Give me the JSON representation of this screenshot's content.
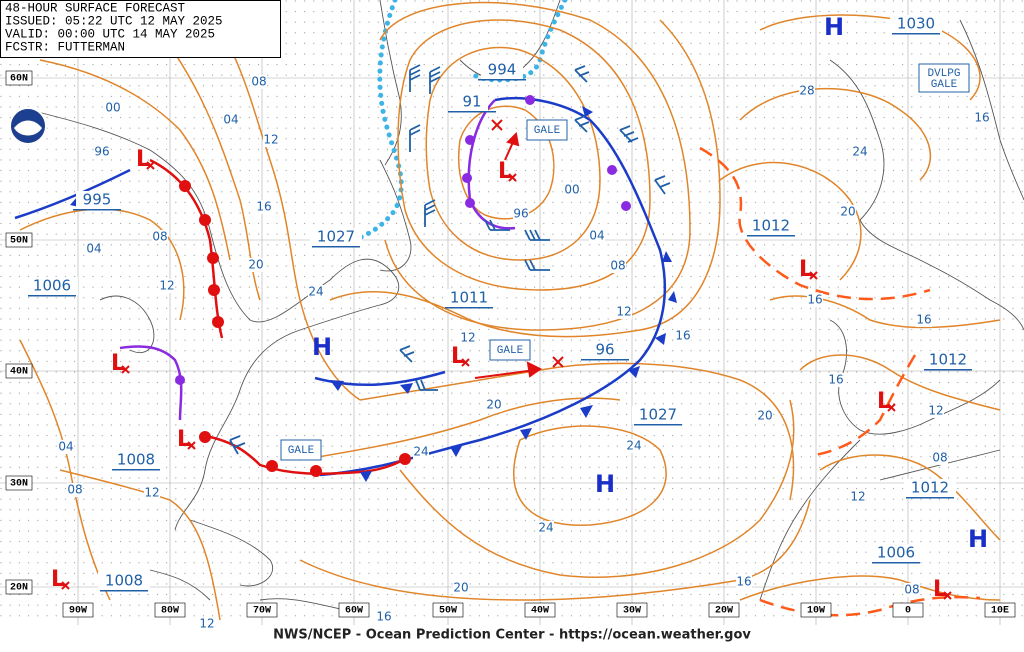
{
  "header": {
    "lines": [
      "48-HOUR SURFACE FORECAST",
      "ISSUED: 05:22 UTC 12 MAY 2025",
      "VALID:  00:00 UTC 14 MAY 2025",
      "FCSTR:  FUTTERMAN"
    ]
  },
  "footer": "NWS/NCEP - Ocean Prediction Center - https://ocean.weather.gov",
  "lat_labels": [
    "60N",
    "50N",
    "40N",
    "30N",
    "20N"
  ],
  "lon_labels": [
    "90W",
    "80W",
    "70W",
    "60W",
    "50W",
    "40W",
    "30W",
    "20W",
    "10W",
    "0",
    "10E"
  ],
  "highs": [
    "H",
    "H",
    "H",
    "H"
  ],
  "lows": [
    "L",
    "L",
    "L",
    "L",
    "L",
    "L",
    "L",
    "L",
    "L"
  ],
  "pressures": [
    "1030",
    "994",
    "91",
    "995",
    "1027",
    "1006",
    "1011",
    "96",
    "1027",
    "1008",
    "1008",
    "1012",
    "1012",
    "1012",
    "1006"
  ],
  "warnings": [
    "GALE",
    "GALE",
    "GALE",
    "DVLPG GALE"
  ],
  "isobar_labels": [
    "08",
    "04",
    "00",
    "96",
    "12",
    "16",
    "08",
    "04",
    "20",
    "24",
    "12",
    "04",
    "08",
    "12",
    "00",
    "96",
    "04",
    "08",
    "12",
    "16",
    "20",
    "24",
    "24",
    "24",
    "20",
    "20",
    "16",
    "12",
    "28",
    "24",
    "20",
    "16",
    "16",
    "16",
    "16",
    "12",
    "08",
    "12",
    "16",
    "08",
    "12"
  ]
}
